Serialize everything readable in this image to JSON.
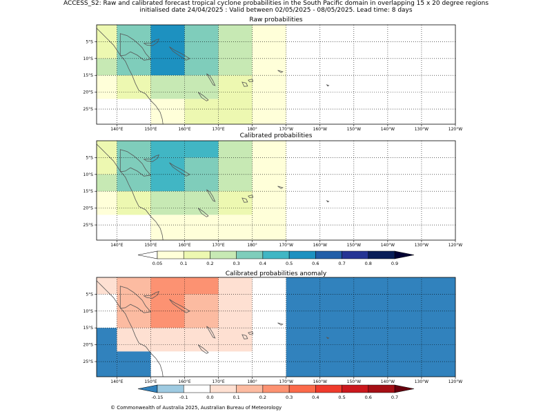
{
  "figure": {
    "title_line1": "ACCESS_S2: Raw and calibrated forecast tropical cyclone probabilities in the South Pacific domain in overlapping 15 x 20 degree regions",
    "title_line2": "initialised date 24/04/2025 :  Valid between 02/05/2025 - 08/05/2025. Lead time: 8 days",
    "copyright": "© Commonwealth of Australia 2025, Australian Bureau of Meteorology"
  },
  "map": {
    "lon_range": [
      134,
      240
    ],
    "lat_range": [
      -29.5,
      0
    ],
    "lon_ticks": [
      "140°E",
      "150°E",
      "160°E",
      "170°E",
      "180°",
      "170°W",
      "160°W",
      "150°W",
      "140°W",
      "130°W",
      "120°W"
    ],
    "lat_ticks": [
      "5°S",
      "10°S",
      "15°S",
      "20°S",
      "25°S"
    ],
    "gridlines": "dotted"
  },
  "panels": [
    {
      "title": "Raw probabilities",
      "colorscale": "probability",
      "cells": [
        {
          "lon": [
            134,
            140
          ],
          "lat": [
            -10,
            0
          ],
          "value": 0.15
        },
        {
          "lon": [
            134,
            140
          ],
          "lat": [
            -15,
            -10
          ],
          "value": 0.2
        },
        {
          "lon": [
            134,
            140
          ],
          "lat": [
            -22,
            -15
          ],
          "value": 0.05
        },
        {
          "lon": [
            140,
            150
          ],
          "lat": [
            -15,
            0
          ],
          "value": 0.35
        },
        {
          "lon": [
            140,
            150
          ],
          "lat": [
            -22,
            -15
          ],
          "value": 0.15
        },
        {
          "lon": [
            150,
            160
          ],
          "lat": [
            -15,
            0
          ],
          "value": 0.55
        },
        {
          "lon": [
            150,
            160
          ],
          "lat": [
            -22,
            -15
          ],
          "value": 0.25
        },
        {
          "lon": [
            150,
            160
          ],
          "lat": [
            -29.5,
            -22
          ],
          "value": 0.05
        },
        {
          "lon": [
            160,
            170
          ],
          "lat": [
            -15,
            0
          ],
          "value": 0.35
        },
        {
          "lon": [
            160,
            170
          ],
          "lat": [
            -22,
            -15
          ],
          "value": 0.25
        },
        {
          "lon": [
            160,
            170
          ],
          "lat": [
            -29.5,
            -22
          ],
          "value": 0.15
        },
        {
          "lon": [
            170,
            180
          ],
          "lat": [
            -15,
            0
          ],
          "value": 0.25
        },
        {
          "lon": [
            170,
            180
          ],
          "lat": [
            -29.5,
            -15
          ],
          "value": 0.15
        },
        {
          "lon": [
            180,
            190
          ],
          "lat": [
            -29.5,
            0
          ],
          "value": 0.05
        }
      ]
    },
    {
      "title": "Calibrated probabilities",
      "colorscale": "probability",
      "cells": [
        {
          "lon": [
            134,
            140
          ],
          "lat": [
            -10,
            0
          ],
          "value": 0.15
        },
        {
          "lon": [
            134,
            140
          ],
          "lat": [
            -15,
            -10
          ],
          "value": 0.2
        },
        {
          "lon": [
            134,
            140
          ],
          "lat": [
            -22,
            -15
          ],
          "value": 0.05
        },
        {
          "lon": [
            140,
            150
          ],
          "lat": [
            -15,
            0
          ],
          "value": 0.35
        },
        {
          "lon": [
            140,
            150
          ],
          "lat": [
            -22,
            -15
          ],
          "value": 0.15
        },
        {
          "lon": [
            150,
            170
          ],
          "lat": [
            -5,
            0
          ],
          "value": 0.45
        },
        {
          "lon": [
            150,
            160
          ],
          "lat": [
            -15,
            -5
          ],
          "value": 0.45
        },
        {
          "lon": [
            160,
            170
          ],
          "lat": [
            -15,
            -5
          ],
          "value": 0.35
        },
        {
          "lon": [
            150,
            170
          ],
          "lat": [
            -22,
            -15
          ],
          "value": 0.25
        },
        {
          "lon": [
            150,
            170
          ],
          "lat": [
            -29.5,
            -22
          ],
          "value": 0.05
        },
        {
          "lon": [
            170,
            180
          ],
          "lat": [
            -15,
            0
          ],
          "value": 0.25
        },
        {
          "lon": [
            170,
            180
          ],
          "lat": [
            -22,
            -15
          ],
          "value": 0.15
        },
        {
          "lon": [
            170,
            180
          ],
          "lat": [
            -29.5,
            -22
          ],
          "value": 0.05
        },
        {
          "lon": [
            180,
            190
          ],
          "lat": [
            -29.5,
            0
          ],
          "value": 0.05
        }
      ]
    },
    {
      "title": "Calibrated probabilities anomaly",
      "colorscale": "anomaly",
      "cells": [
        {
          "lon": [
            134,
            140
          ],
          "lat": [
            -5,
            0
          ],
          "value": 0.0
        },
        {
          "lon": [
            134,
            140
          ],
          "lat": [
            -15,
            -5
          ],
          "value": -0.1
        },
        {
          "lon": [
            134,
            140
          ],
          "lat": [
            -29.5,
            -15
          ],
          "value": -0.2
        },
        {
          "lon": [
            140,
            150
          ],
          "lat": [
            -5,
            0
          ],
          "value": 0.15
        },
        {
          "lon": [
            140,
            150
          ],
          "lat": [
            -15,
            -5
          ],
          "value": 0.15
        },
        {
          "lon": [
            140,
            150
          ],
          "lat": [
            -22,
            -15
          ],
          "value": 0.0
        },
        {
          "lon": [
            140,
            150
          ],
          "lat": [
            -29.5,
            -22
          ],
          "value": -0.2
        },
        {
          "lon": [
            150,
            170
          ],
          "lat": [
            -5,
            0
          ],
          "value": 0.25
        },
        {
          "lon": [
            150,
            160
          ],
          "lat": [
            -15,
            -5
          ],
          "value": 0.25
        },
        {
          "lon": [
            160,
            170
          ],
          "lat": [
            -15,
            -5
          ],
          "value": 0.15
        },
        {
          "lon": [
            150,
            170
          ],
          "lat": [
            -22,
            -15
          ],
          "value": 0.05
        },
        {
          "lon": [
            150,
            180
          ],
          "lat": [
            -29.5,
            -22
          ],
          "value": -0.1
        },
        {
          "lon": [
            170,
            180
          ],
          "lat": [
            -15,
            0
          ],
          "value": 0.05
        },
        {
          "lon": [
            170,
            180
          ],
          "lat": [
            -22,
            -15
          ],
          "value": 0.0
        },
        {
          "lon": [
            180,
            190
          ],
          "lat": [
            -29.5,
            0
          ],
          "value": -0.1
        },
        {
          "lon": [
            190,
            240
          ],
          "lat": [
            -29.5,
            0
          ],
          "value": -0.2
        }
      ]
    }
  ],
  "colorbars": {
    "probability": {
      "bounds": [
        0.05,
        0.1,
        0.2,
        0.3,
        0.4,
        0.5,
        0.6,
        0.7,
        0.8,
        0.9
      ],
      "labels": [
        "0.05",
        "0.1",
        "0.2",
        "0.3",
        "0.4",
        "0.5",
        "0.6",
        "0.7",
        "0.8",
        "0.9"
      ],
      "colors": [
        "#ffffd9",
        "#edf8b1",
        "#c7e9b4",
        "#7fcdbb",
        "#41b6c4",
        "#1d91c0",
        "#225ea8",
        "#253494",
        "#081d58"
      ],
      "under": "#ffffff",
      "over": "#000033"
    },
    "anomaly": {
      "bounds": [
        -0.15,
        -0.1,
        0.0,
        0.1,
        0.2,
        0.3,
        0.4,
        0.5,
        0.6,
        0.7
      ],
      "labels": [
        "-0.15",
        "-0.1",
        "0.0",
        "0.1",
        "0.2",
        "0.3",
        "0.4",
        "0.5",
        "0.6",
        "0.7"
      ],
      "colors": [
        "#9ecae1",
        "#ffffff",
        "#fee0d2",
        "#fcbba1",
        "#fc9272",
        "#fb6a4a",
        "#ef3b2c",
        "#cb181d",
        "#a50f15"
      ],
      "under": "#3182bd",
      "over": "#67000d"
    }
  }
}
